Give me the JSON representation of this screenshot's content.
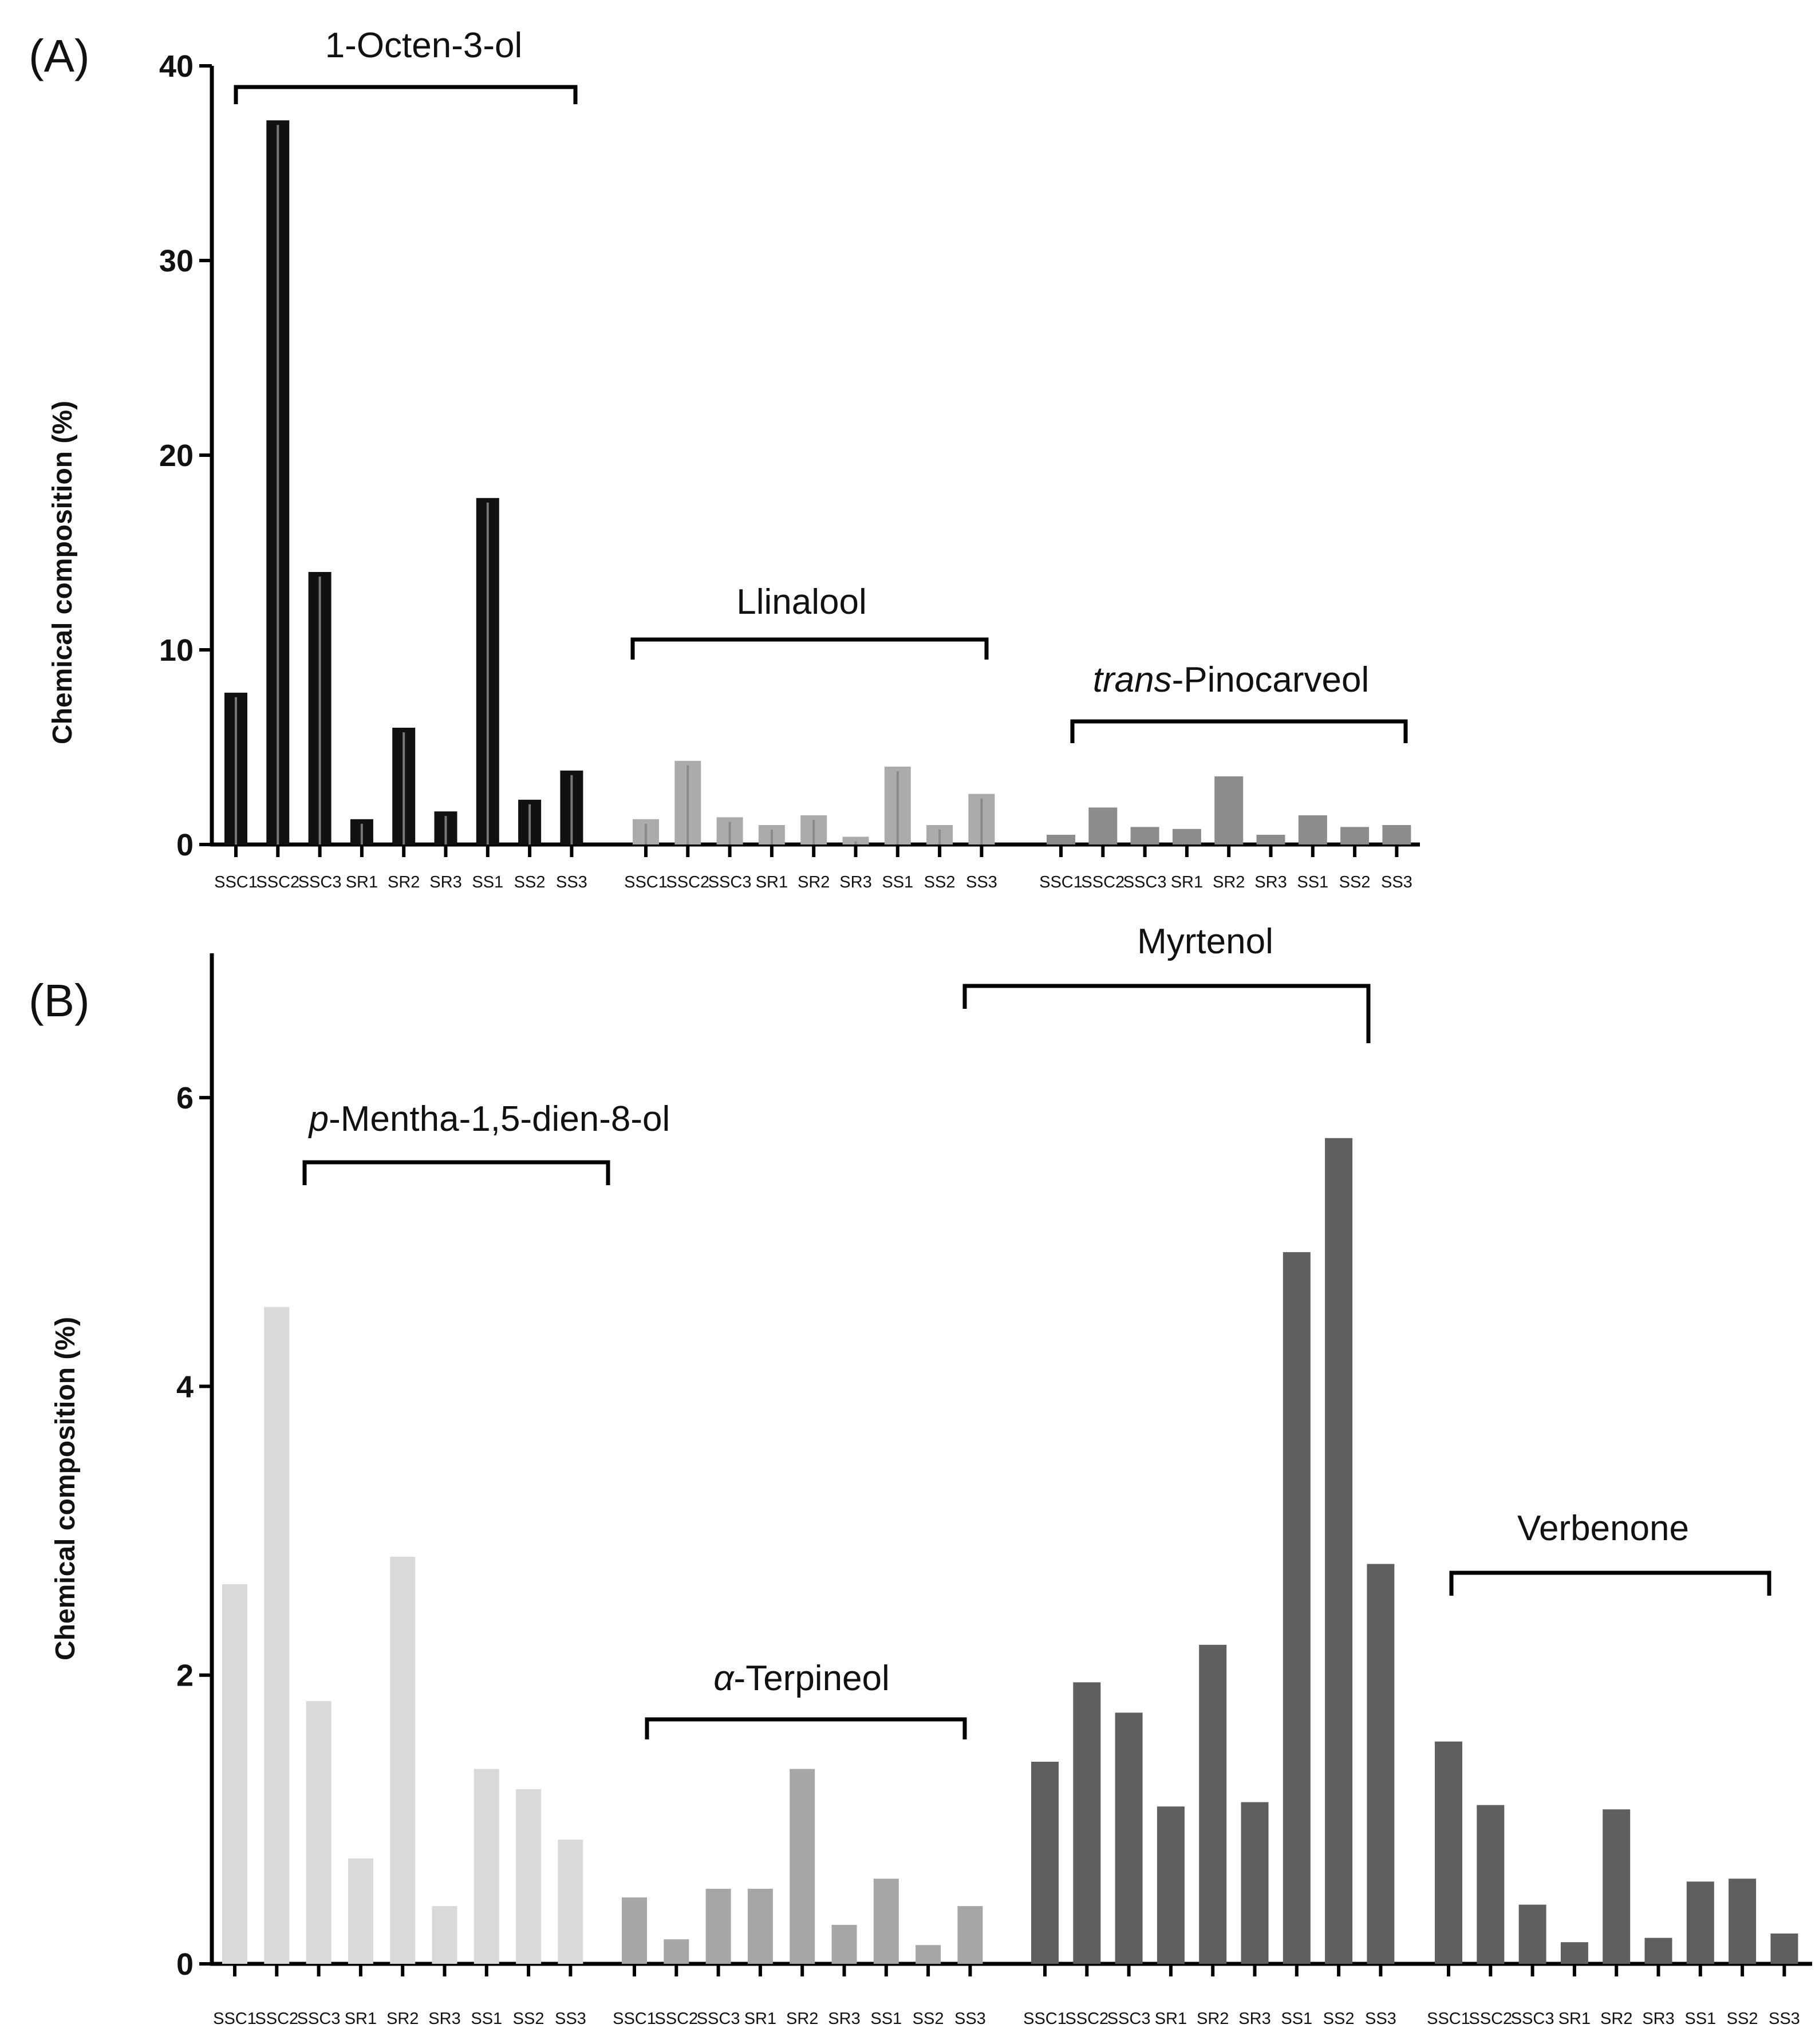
{
  "figure": {
    "panels": [
      {
        "id": "A",
        "panel_label": "(A)",
        "chart_type": "bar",
        "ylabel": "Chemical composition (%)",
        "ylim": [
          0,
          40
        ],
        "yticks": [
          "0",
          "10",
          "20",
          "30",
          "40"
        ],
        "groups": [
          {
            "name": "1-Octen-3-ol",
            "title_parts": [
              {
                "text": "1-Octen-3-ol",
                "italic": false
              }
            ],
            "color": "#111111",
            "inner_line": "#777777",
            "categories": [
              "SSC1",
              "SSC2",
              "SSC3",
              "SR1",
              "SR2",
              "SR3",
              "SS1",
              "SS2",
              "SS3"
            ],
            "values": [
              7.8,
              37.2,
              14.0,
              1.3,
              6.0,
              1.7,
              17.8,
              2.3,
              3.8
            ]
          },
          {
            "name": "Llinalool",
            "title_parts": [
              {
                "text": "Llinalool",
                "italic": false
              }
            ],
            "color": "#ababab",
            "inner_line": "#8a8a8a",
            "categories": [
              "SSC1",
              "SSC2",
              "SSC3",
              "SR1",
              "SR2",
              "SR3",
              "SS1",
              "SS2",
              "SS3"
            ],
            "values": [
              1.3,
              4.3,
              1.4,
              1.0,
              1.5,
              0.4,
              4.0,
              1.0,
              2.6
            ]
          },
          {
            "name": "trans-Pinocarveol",
            "title_parts": [
              {
                "text": "trans",
                "italic": true
              },
              {
                "text": "-Pinocarveol",
                "italic": false
              }
            ],
            "color": "#8c8c8c",
            "inner_line": null,
            "categories": [
              "SSC1",
              "SSC2",
              "SSC3",
              "SR1",
              "SR2",
              "SR3",
              "SS1",
              "SS2",
              "SS3"
            ],
            "values": [
              0.5,
              1.9,
              0.9,
              0.8,
              3.5,
              0.5,
              1.5,
              0.9,
              1.0
            ]
          }
        ]
      },
      {
        "id": "B",
        "panel_label": "(B)",
        "chart_type": "bar",
        "ylabel": "Chemical composition (%)",
        "ylim": [
          0,
          7
        ],
        "yticks": [
          "0",
          "2",
          "4",
          "6"
        ],
        "groups": [
          {
            "name": "p-Mentha-1,5-dien-8-ol",
            "title_parts": [
              {
                "text": "p",
                "italic": true
              },
              {
                "text": "-Mentha-1,5-dien-8-ol",
                "italic": false
              }
            ],
            "color": "#d9d9d9",
            "inner_line": null,
            "categories": [
              "SSC1",
              "SSC2",
              "SSC3",
              "SR1",
              "SR2",
              "SR3",
              "SS1",
              "SS2",
              "SS3"
            ],
            "values": [
              2.63,
              4.55,
              1.82,
              0.73,
              2.82,
              0.4,
              1.35,
              1.21,
              0.86
            ]
          },
          {
            "name": "α-Terpineol",
            "title_parts": [
              {
                "text": "α",
                "italic": true
              },
              {
                "text": "-Terpineol",
                "italic": false
              }
            ],
            "color": "#a6a6a6",
            "inner_line": null,
            "categories": [
              "SSC1",
              "SSC2",
              "SSC3",
              "SR1",
              "SR2",
              "SR3",
              "SS1",
              "SS2",
              "SS3"
            ],
            "values": [
              0.46,
              0.17,
              0.52,
              0.52,
              1.35,
              0.27,
              0.59,
              0.13,
              0.4
            ]
          },
          {
            "name": "Myrtenol",
            "title_parts": [
              {
                "text": "Myrtenol",
                "italic": false
              }
            ],
            "color": "#5f5f5f",
            "inner_line": null,
            "categories": [
              "SSC1",
              "SSC2",
              "SSC3",
              "SR1",
              "SR2",
              "SR3",
              "SS1",
              "SS2",
              "SS3"
            ],
            "values": [
              1.4,
              1.95,
              1.74,
              1.09,
              2.21,
              1.12,
              4.93,
              5.72,
              2.77
            ]
          },
          {
            "name": "Verbenone",
            "title_parts": [
              {
                "text": "Verbenone",
                "italic": false
              }
            ],
            "color": "#5f5f5f",
            "inner_line": null,
            "categories": [
              "SSC1",
              "SSC2",
              "SSC3",
              "SR1",
              "SR2",
              "SR3",
              "SS1",
              "SS2",
              "SS3"
            ],
            "values": [
              1.54,
              1.1,
              0.41,
              0.15,
              1.07,
              0.18,
              0.57,
              0.59,
              0.21
            ]
          }
        ]
      }
    ]
  },
  "chart_data": [
    {
      "type": "bar",
      "title": "(A)",
      "xlabel": "",
      "ylabel": "Chemical composition (%)",
      "ylim": [
        0,
        40
      ],
      "grid": false,
      "categories": [
        "SSC1",
        "SSC2",
        "SSC3",
        "SR1",
        "SR2",
        "SR3",
        "SS1",
        "SS2",
        "SS3"
      ],
      "series": [
        {
          "name": "1-Octen-3-ol",
          "values": [
            7.8,
            37.2,
            14.0,
            1.3,
            6.0,
            1.7,
            17.8,
            2.3,
            3.8
          ]
        },
        {
          "name": "Llinalool",
          "values": [
            1.3,
            4.3,
            1.4,
            1.0,
            1.5,
            0.4,
            4.0,
            1.0,
            2.6
          ]
        },
        {
          "name": "trans-Pinocarveol",
          "values": [
            0.5,
            1.9,
            0.9,
            0.8,
            3.5,
            0.5,
            1.5,
            0.9,
            1.0
          ]
        }
      ]
    },
    {
      "type": "bar",
      "title": "(B)",
      "xlabel": "",
      "ylabel": "Chemical composition (%)",
      "ylim": [
        0,
        7
      ],
      "grid": false,
      "categories": [
        "SSC1",
        "SSC2",
        "SSC3",
        "SR1",
        "SR2",
        "SR3",
        "SS1",
        "SS2",
        "SS3"
      ],
      "series": [
        {
          "name": "p-Mentha-1,5-dien-8-ol",
          "values": [
            2.63,
            4.55,
            1.82,
            0.73,
            2.82,
            0.4,
            1.35,
            1.21,
            0.86
          ]
        },
        {
          "name": "α-Terpineol",
          "values": [
            0.46,
            0.17,
            0.52,
            0.52,
            1.35,
            0.27,
            0.59,
            0.13,
            0.4
          ]
        },
        {
          "name": "Myrtenol",
          "values": [
            1.4,
            1.95,
            1.74,
            1.09,
            2.21,
            1.12,
            4.93,
            5.72,
            2.77
          ]
        },
        {
          "name": "Verbenone",
          "values": [
            1.54,
            1.1,
            0.41,
            0.15,
            1.07,
            0.18,
            0.57,
            0.59,
            0.21
          ]
        }
      ]
    }
  ]
}
